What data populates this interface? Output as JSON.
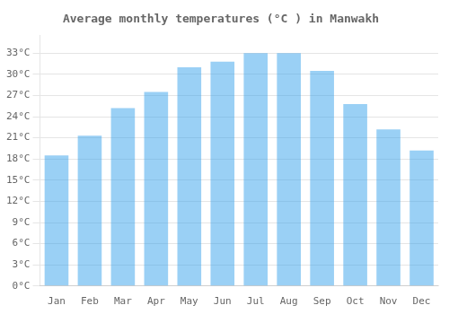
{
  "chart_data": {
    "type": "bar",
    "title": "Average monthly temperatures (°C ) in Manwakh",
    "categories": [
      "Jan",
      "Feb",
      "Mar",
      "Apr",
      "May",
      "Jun",
      "Jul",
      "Aug",
      "Sep",
      "Oct",
      "Nov",
      "Dec"
    ],
    "values": [
      18.5,
      21.3,
      25.2,
      27.5,
      31.0,
      31.8,
      33.0,
      33.0,
      30.5,
      25.8,
      22.2,
      19.2
    ],
    "ylim": [
      0,
      35.5
    ],
    "yticks": [
      {
        "value": 0,
        "label": "0°C"
      },
      {
        "value": 3,
        "label": "3°C"
      },
      {
        "value": 6,
        "label": "6°C"
      },
      {
        "value": 9,
        "label": "9°C"
      },
      {
        "value": 12,
        "label": "12°C"
      },
      {
        "value": 15,
        "label": "15°C"
      },
      {
        "value": 18,
        "label": "18°C"
      },
      {
        "value": 21,
        "label": "21°C"
      },
      {
        "value": 24,
        "label": "24°C"
      },
      {
        "value": 27,
        "label": "27°C"
      },
      {
        "value": 30,
        "label": "30°C"
      },
      {
        "value": 33,
        "label": "33°C"
      }
    ],
    "grid": true
  }
}
